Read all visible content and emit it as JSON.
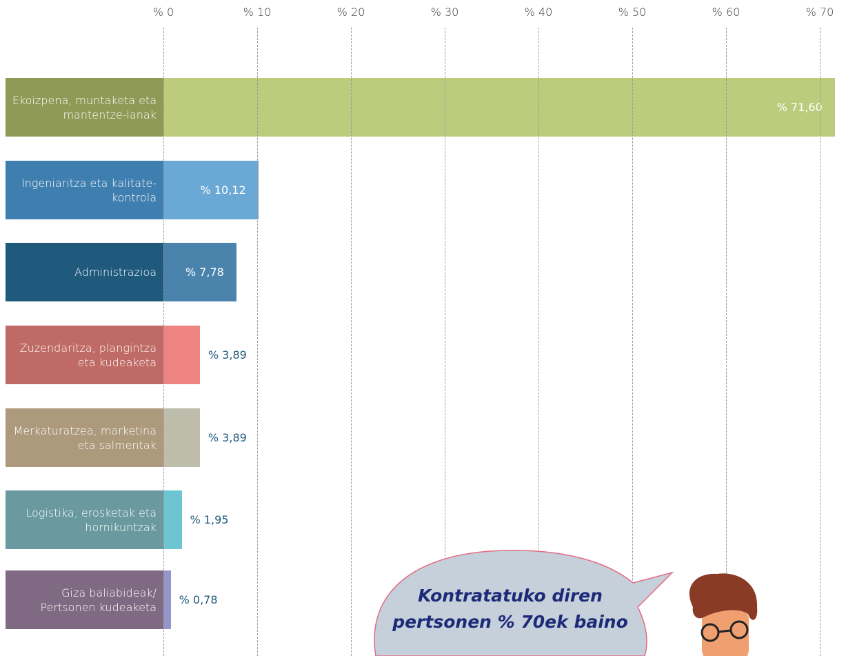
{
  "chart_data": {
    "type": "bar",
    "orientation": "horizontal",
    "categories": [
      "Ekoizpena, muntaketa eta mantentze-lanak",
      "Ingeniaritza eta kalitate-kontrola",
      "Administrazioa",
      "Zuzendaritza, plangintza eta kudeaketa",
      "Merkaturatzea, marketina eta salmentak",
      "Logistika, erosketak eta hornikuntzak",
      "Giza baliabideak/ Pertsonen kudeaketa"
    ],
    "values": [
      71.6,
      10.12,
      7.78,
      3.89,
      3.89,
      1.95,
      0.78
    ],
    "value_labels": [
      "% 71,60",
      "% 10,12",
      "% 7,78",
      "% 3,89",
      "% 3,89",
      "% 1,95",
      "% 0,78"
    ],
    "colors": [
      "#bccb7c",
      "#6aa8d6",
      "#4a84ad",
      "#ee8582",
      "#bebcab",
      "#6cc5d0",
      "#9595c9"
    ],
    "label_colors": [
      "#8e9a55",
      "#3f7fb0",
      "#1f5a7d",
      "#c06a66",
      "#ad9a7d",
      "#6a9aa0",
      "#806a83"
    ],
    "xlim": [
      0,
      70
    ],
    "xticks": [
      {
        "value": 0,
        "label": "% 0"
      },
      {
        "value": 10,
        "label": "% 10"
      },
      {
        "value": 20,
        "label": "% 20"
      },
      {
        "value": 30,
        "label": "% 30"
      },
      {
        "value": 40,
        "label": "% 40"
      },
      {
        "value": 50,
        "label": "% 50"
      },
      {
        "value": 60,
        "label": "% 60"
      },
      {
        "value": 70,
        "label": "% 70"
      }
    ],
    "grid": true,
    "annotations": [
      "Kontratatuko diren",
      "pertsonen % 70ek baino"
    ]
  }
}
